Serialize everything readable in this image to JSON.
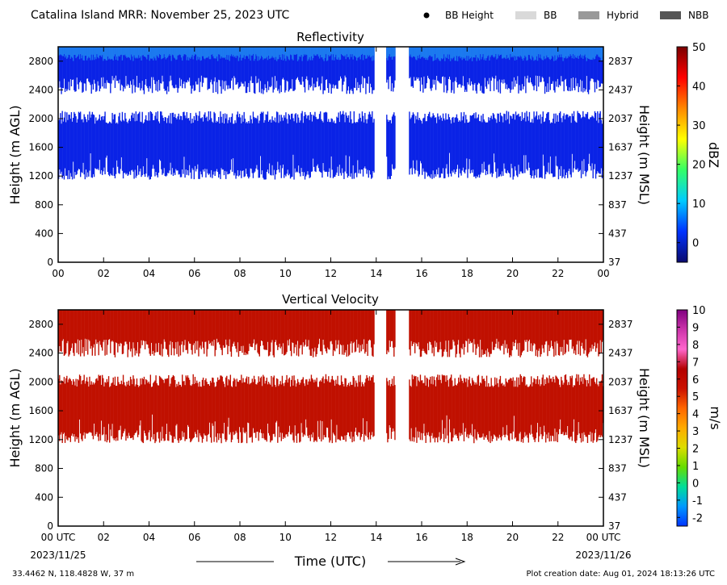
{
  "header": {
    "title": "Catalina Island MRR:  November 25, 2023 UTC",
    "legend": [
      {
        "label": "BB Height",
        "kind": "dot",
        "color": "#000000"
      },
      {
        "label": "BB",
        "kind": "box",
        "color": "#d9d9d9"
      },
      {
        "label": "Hybrid",
        "kind": "box",
        "color": "#999999"
      },
      {
        "label": "NBB",
        "kind": "box",
        "color": "#555555"
      }
    ]
  },
  "footer": {
    "location": "33.4462 N, 118.4828 W, 37 m",
    "creation": "Plot creation date: Aug 01, 2024 18:13:26 UTC",
    "start_date": "2023/11/25",
    "end_date": "2023/11/26",
    "xlabel": "Time (UTC)"
  },
  "chart_data": [
    {
      "type": "heatmap",
      "title": "Reflectivity",
      "ylabel": "Height (m AGL)",
      "ylabel_right": "Height (m MSL)",
      "colorbar": {
        "label": "dBZ",
        "range": [
          -5,
          50
        ],
        "ticks": [
          0,
          10,
          20,
          30,
          40,
          50
        ],
        "stops": [
          "#0a0a6e",
          "#0033ff",
          "#00ccff",
          "#33ff66",
          "#ffff00",
          "#ff8800",
          "#ff0000",
          "#7a0000"
        ]
      },
      "fill_color": "#0a23e6",
      "top_color": "#1f86f0",
      "x_ticks": [
        "00",
        "02",
        "04",
        "06",
        "08",
        "10",
        "12",
        "14",
        "16",
        "18",
        "20",
        "22",
        "00"
      ],
      "y_ticks": [
        "0",
        "400",
        "800",
        "1200",
        "1600",
        "2000",
        "2400",
        "2800"
      ],
      "y_ticks_right": [
        "37",
        "437",
        "837",
        "1237",
        "1637",
        "2037",
        "2437",
        "2837"
      ],
      "xlim": [
        0,
        24
      ],
      "ylim": [
        0,
        3000
      ],
      "layers": [
        {
          "name": "upper",
          "bottom": 2600,
          "top": 3000
        },
        {
          "name": "lower",
          "bottom": 1250,
          "top": 2000
        }
      ],
      "gaps": [
        [
          13.9,
          14.4
        ],
        [
          14.8,
          15.4
        ]
      ]
    },
    {
      "type": "heatmap",
      "title": "Vertical Velocity",
      "ylabel": "Height (m AGL)",
      "ylabel_right": "Height (m MSL)",
      "colorbar": {
        "label": "m/s",
        "range": [
          -2.5,
          10
        ],
        "ticks": [
          -2,
          -1,
          0,
          1,
          2,
          3,
          4,
          5,
          6,
          7,
          8,
          9,
          10
        ],
        "stops": [
          "#0033ff",
          "#0099ff",
          "#00dd99",
          "#66dd00",
          "#dddd00",
          "#ffaa00",
          "#ff6600",
          "#cc1100",
          "#b30000",
          "#ff66cc",
          "#cc33aa",
          "#800080"
        ]
      },
      "fill_color": "#c01000",
      "top_color": "#c01000",
      "x_ticks": [
        "00 UTC",
        "02",
        "04",
        "06",
        "08",
        "10",
        "12",
        "14",
        "16",
        "18",
        "20",
        "22",
        "00 UTC"
      ],
      "y_ticks": [
        "0",
        "400",
        "800",
        "1200",
        "1600",
        "2000",
        "2400",
        "2800"
      ],
      "y_ticks_right": [
        "37",
        "437",
        "837",
        "1237",
        "1637",
        "2037",
        "2437",
        "2837"
      ],
      "xlim": [
        0,
        24
      ],
      "ylim": [
        0,
        3000
      ],
      "layers": [
        {
          "name": "upper",
          "bottom": 2600,
          "top": 3000
        },
        {
          "name": "lower",
          "bottom": 1250,
          "top": 2000
        }
      ],
      "gaps": [
        [
          13.9,
          14.4
        ],
        [
          14.8,
          15.4
        ]
      ]
    }
  ]
}
